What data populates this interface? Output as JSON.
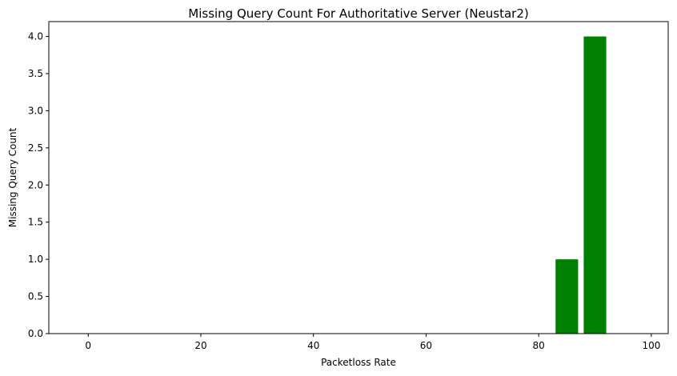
{
  "chart_data": {
    "type": "bar",
    "title": "Missing Query Count For Authoritative Server (Neustar2)",
    "xlabel": "Packetloss Rate",
    "ylabel": "Missing Query Count",
    "xlim": [
      -7,
      103
    ],
    "ylim": [
      0,
      4.2
    ],
    "xticks": [
      0,
      20,
      40,
      60,
      80,
      100
    ],
    "yticks": [
      0.0,
      0.5,
      1.0,
      1.5,
      2.0,
      2.5,
      3.0,
      3.5,
      4.0
    ],
    "bar_width": 4,
    "bar_color": "#008000",
    "grid": false,
    "x": [
      85,
      90
    ],
    "values": [
      1,
      4
    ]
  }
}
